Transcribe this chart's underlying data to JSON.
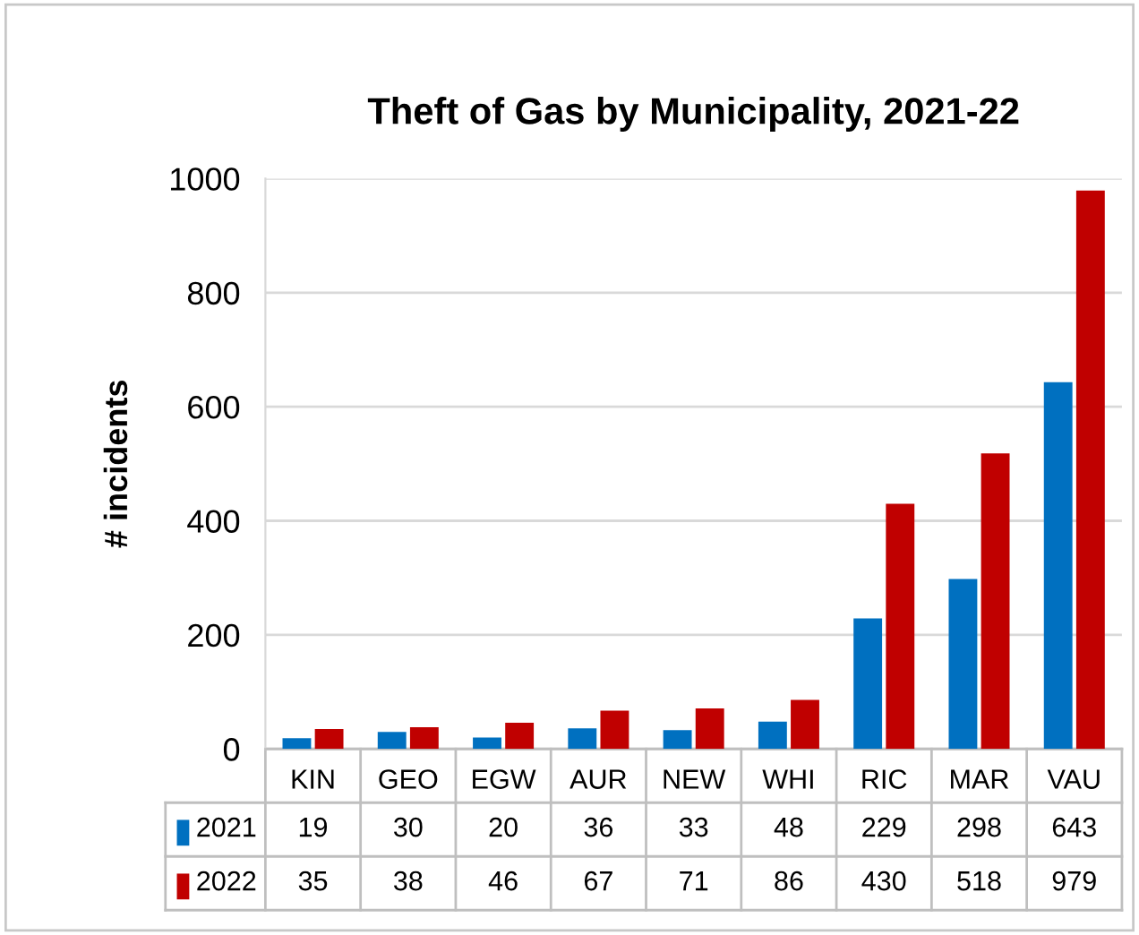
{
  "chart_data": {
    "type": "bar",
    "title": "Theft of Gas by Municipality, 2021-22",
    "ylabel": "# incidents",
    "categories": [
      "KIN",
      "GEO",
      "EGW",
      "AUR",
      "NEW",
      "WHI",
      "RIC",
      "MAR",
      "VAU"
    ],
    "series": [
      {
        "name": "2021",
        "color": "#0070c0",
        "values": [
          19,
          30,
          20,
          36,
          33,
          48,
          229,
          298,
          643
        ]
      },
      {
        "name": "2022",
        "color": "#c00000",
        "values": [
          35,
          38,
          46,
          67,
          71,
          86,
          430,
          518,
          979
        ]
      }
    ],
    "ylim": [
      0,
      1000
    ],
    "yticks": [
      0,
      200,
      400,
      600,
      800,
      1000
    ],
    "grid": "y",
    "legend": "bottom",
    "data_labels": true
  }
}
